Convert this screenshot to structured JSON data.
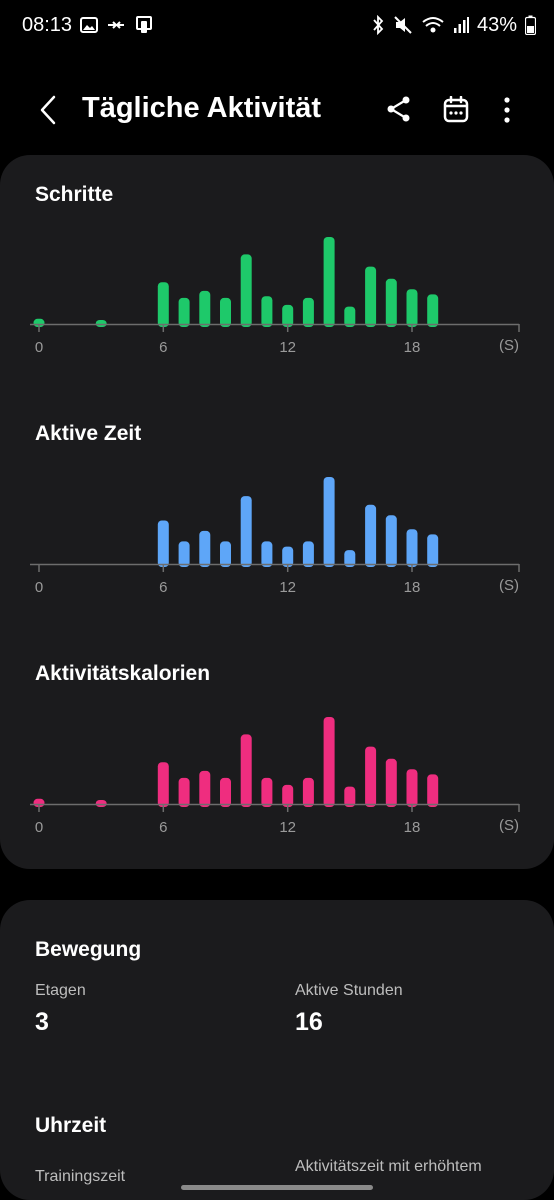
{
  "status": {
    "time": "08:13",
    "battery": "43%"
  },
  "header": {
    "title": "Tägliche Aktivität",
    "icons": [
      "back-arrow-icon",
      "share-icon",
      "calendar-icon",
      "more-vert-icon"
    ]
  },
  "charts_card": {
    "x_ticks": [
      "0",
      "6",
      "12",
      "18"
    ],
    "x_unit": "(S)"
  },
  "chart_data": [
    {
      "type": "bar",
      "title": "Schritte",
      "color": "#1ec96a",
      "x": [
        0,
        3,
        6,
        7,
        8,
        9,
        10,
        11,
        12,
        13,
        14,
        15,
        16,
        17,
        18,
        19
      ],
      "values": [
        3,
        2,
        24,
        15,
        19,
        15,
        40,
        16,
        11,
        15,
        50,
        10,
        33,
        26,
        20,
        17
      ],
      "xlim": [
        0,
        23
      ],
      "ylim": [
        0,
        50
      ],
      "xticks": [
        "0",
        "6",
        "12",
        "18"
      ],
      "xlabel": "(S)"
    },
    {
      "type": "bar",
      "title": "Aktive Zeit",
      "color": "#5ea6f8",
      "x": [
        6,
        7,
        8,
        9,
        10,
        11,
        12,
        13,
        14,
        15,
        16,
        17,
        18,
        19
      ],
      "values": [
        25,
        13,
        19,
        13,
        39,
        13,
        10,
        13,
        50,
        8,
        34,
        28,
        20,
        17
      ],
      "xlim": [
        0,
        23
      ],
      "ylim": [
        0,
        50
      ],
      "xticks": [
        "0",
        "6",
        "12",
        "18"
      ],
      "xlabel": "(S)"
    },
    {
      "type": "bar",
      "title": "Aktivitätskalorien",
      "color": "#ef2d7f",
      "x": [
        0,
        3,
        6,
        7,
        8,
        9,
        10,
        11,
        12,
        13,
        14,
        15,
        16,
        17,
        18,
        19
      ],
      "values": [
        3,
        2,
        24,
        15,
        19,
        15,
        40,
        15,
        11,
        15,
        50,
        10,
        33,
        26,
        20,
        17
      ],
      "xlim": [
        0,
        23
      ],
      "ylim": [
        0,
        50
      ],
      "xticks": [
        "0",
        "6",
        "12",
        "18"
      ],
      "xlabel": "(S)"
    }
  ],
  "bewegung": {
    "title": "Bewegung",
    "etagen_label": "Etagen",
    "etagen_value": "3",
    "aktive_stunden_label": "Aktive Stunden",
    "aktive_stunden_value": "16"
  },
  "uhrzeit": {
    "title": "Uhrzeit",
    "training_label": "Trainingszeit",
    "elevated_label": "Aktivitätszeit mit erhöhtem"
  }
}
